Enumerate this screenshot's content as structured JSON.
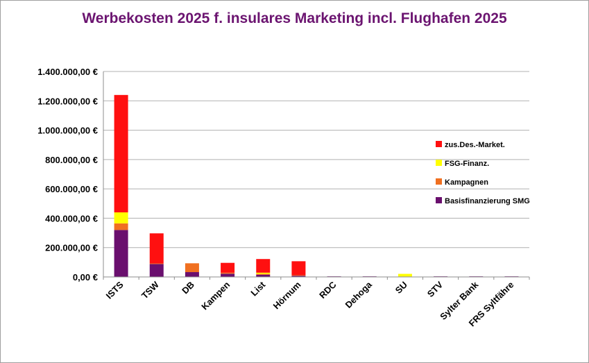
{
  "chart_data": {
    "type": "bar",
    "stacked": true,
    "title": "Werbekosten 2025 f. insulares Marketing incl. Flughafen 2025",
    "xlabel": "",
    "ylabel": "",
    "ylim": [
      0,
      1400000
    ],
    "yticks": [
      0,
      200000,
      400000,
      600000,
      800000,
      1000000,
      1200000,
      1400000
    ],
    "ytick_labels": [
      "0,00 €",
      "200.000,00 €",
      "400.000,00 €",
      "600.000,00 €",
      "800.000,00 €",
      "1.000.000,00 €",
      "1.200.000,00 €",
      "1.400.000,00 €"
    ],
    "grid": true,
    "legend_position": "right",
    "categories": [
      "ISTS",
      "TSW",
      "DB",
      "Kampen",
      "List",
      "Hörnum",
      "RDC",
      "Dehoga",
      "SU",
      "STV",
      "Sylter Bank",
      "FRS Syltfähre"
    ],
    "series": [
      {
        "name": "Basisfinanzierung SMG",
        "color": "#6a0f6e",
        "values": [
          320000,
          88000,
          33000,
          22000,
          15000,
          8000,
          4000,
          4000,
          3000,
          4000,
          4000,
          4000
        ]
      },
      {
        "name": "Kampagnen",
        "color": "#f07020",
        "values": [
          45000,
          4000,
          60000,
          7000,
          6000,
          4000,
          0,
          0,
          0,
          0,
          0,
          0
        ]
      },
      {
        "name": "FSG-Finanz.",
        "color": "#ffff00",
        "values": [
          75000,
          0,
          0,
          0,
          8000,
          0,
          0,
          0,
          18000,
          0,
          0,
          0
        ]
      },
      {
        "name": "zus.Des.-Market.",
        "color": "#ff1010",
        "values": [
          800000,
          205000,
          0,
          67000,
          93000,
          95000,
          0,
          0,
          0,
          0,
          0,
          0
        ]
      }
    ]
  }
}
